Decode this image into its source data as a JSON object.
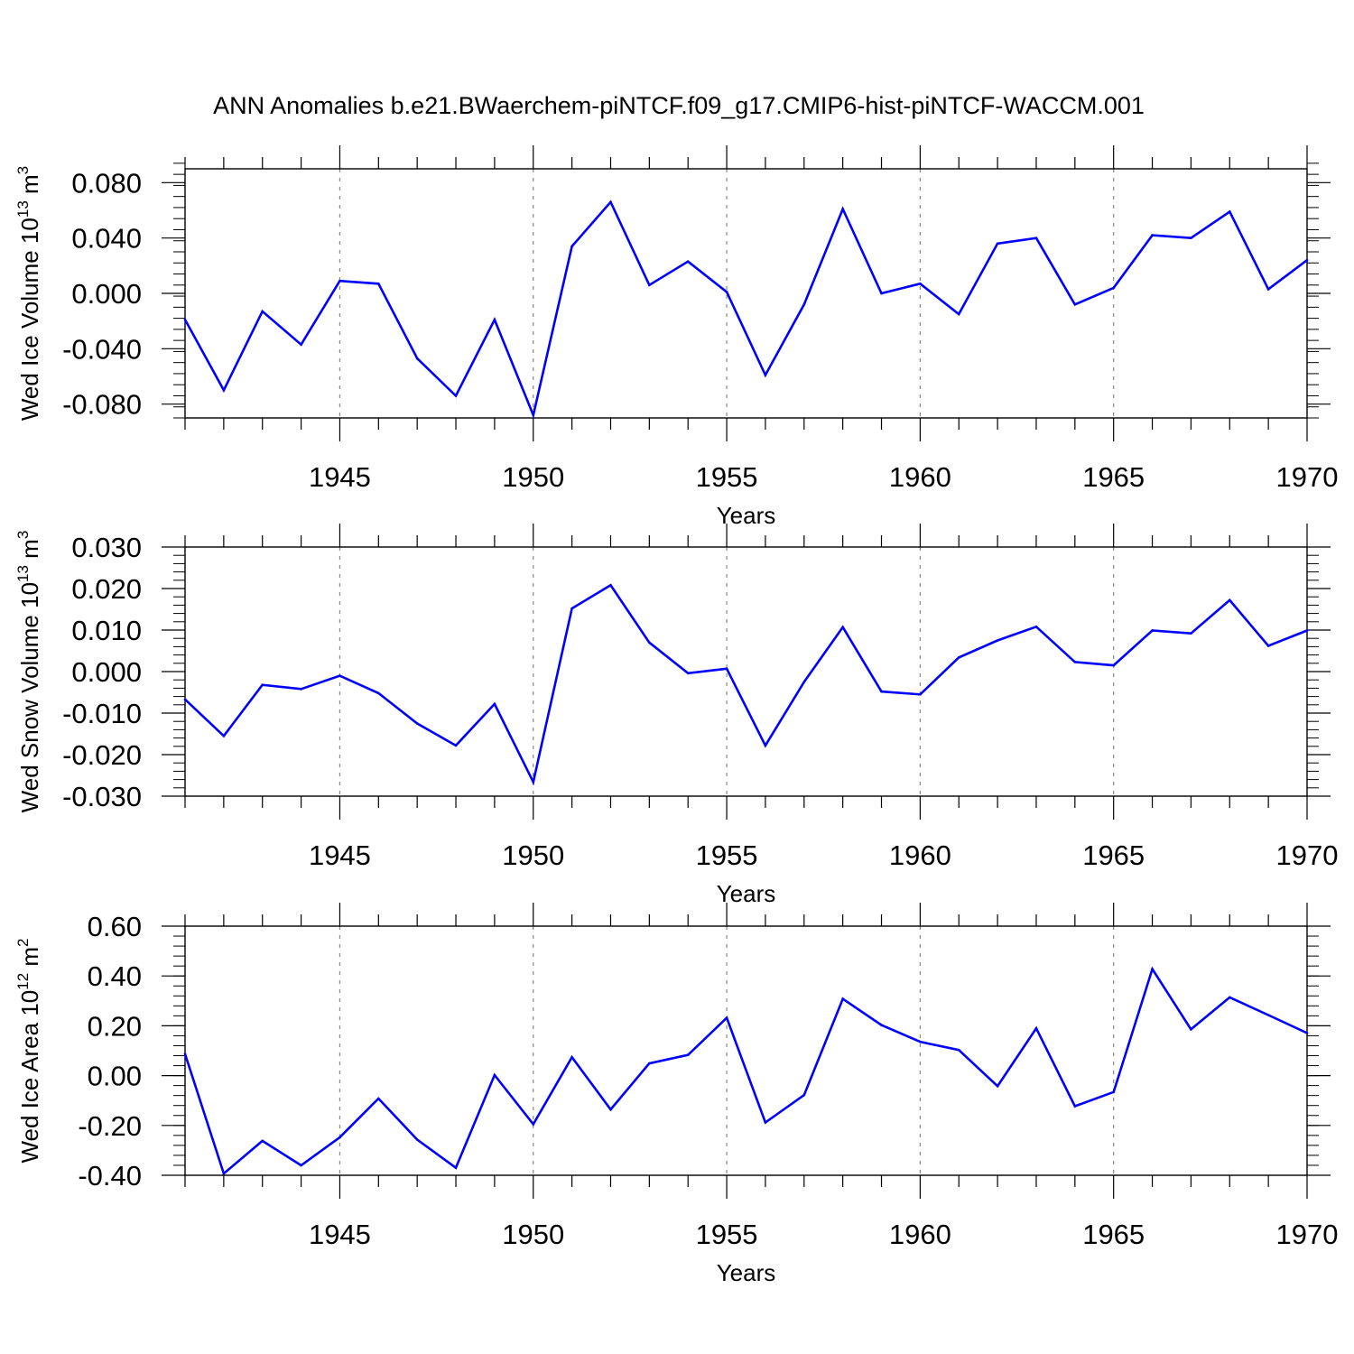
{
  "title": "ANN Anomalies b.e21.BWaerchem-piNTCF.f09_g17.CMIP6-hist-piNTCF-WACCM.001",
  "colors": {
    "line": "#0000ff",
    "axis": "#000000",
    "grid": "#888888"
  },
  "chart_data": [
    {
      "type": "line",
      "name": "ice-volume",
      "ylabel_main": "Wed Ice Volume 10",
      "ylabel_exp": "13",
      "ylabel_unit": " m",
      "ylabel_unit_exp": "3",
      "xlabel": "Years",
      "xlim": [
        1941,
        1970
      ],
      "ylim": [
        -0.09,
        0.09
      ],
      "yticks": [
        -0.08,
        -0.04,
        0.0,
        0.04,
        0.08
      ],
      "ytick_labels": [
        "-0.080",
        "-0.040",
        "0.000",
        "0.040",
        "0.080"
      ],
      "yminor_step": 0.008,
      "xticks": [
        1945,
        1950,
        1955,
        1960,
        1965,
        1970
      ],
      "xtick_labels": [
        "1945",
        "1950",
        "1955",
        "1960",
        "1965",
        "1970"
      ],
      "x": [
        1941,
        1942,
        1943,
        1944,
        1945,
        1946,
        1947,
        1948,
        1949,
        1950,
        1951,
        1952,
        1953,
        1954,
        1955,
        1956,
        1957,
        1958,
        1959,
        1960,
        1961,
        1962,
        1963,
        1964,
        1965,
        1966,
        1967,
        1968,
        1969,
        1970
      ],
      "values": [
        -0.019,
        -0.07,
        -0.013,
        -0.037,
        0.009,
        0.007,
        -0.047,
        -0.074,
        -0.019,
        -0.088,
        0.034,
        0.066,
        0.006,
        0.023,
        0.001,
        -0.059,
        -0.008,
        0.061,
        0.0,
        0.007,
        -0.015,
        0.036,
        0.04,
        -0.008,
        0.004,
        0.042,
        0.04,
        0.059,
        0.003,
        0.024
      ]
    },
    {
      "type": "line",
      "name": "snow-volume",
      "ylabel_main": "Wed Snow Volume 10",
      "ylabel_exp": "13",
      "ylabel_unit": " m",
      "ylabel_unit_exp": "3",
      "xlabel": "Years",
      "xlim": [
        1941,
        1970
      ],
      "ylim": [
        -0.03,
        0.03
      ],
      "yticks": [
        -0.03,
        -0.02,
        -0.01,
        0.0,
        0.01,
        0.02,
        0.03
      ],
      "ytick_labels": [
        "-0.030",
        "-0.020",
        "-0.010",
        "0.000",
        "0.010",
        "0.020",
        "0.030"
      ],
      "yminor_step": 0.002,
      "xticks": [
        1945,
        1950,
        1955,
        1960,
        1965,
        1970
      ],
      "xtick_labels": [
        "1945",
        "1950",
        "1955",
        "1960",
        "1965",
        "1970"
      ],
      "x": [
        1941,
        1942,
        1943,
        1944,
        1945,
        1946,
        1947,
        1948,
        1949,
        1950,
        1951,
        1952,
        1953,
        1954,
        1955,
        1956,
        1957,
        1958,
        1959,
        1960,
        1961,
        1962,
        1963,
        1964,
        1965,
        1966,
        1967,
        1968,
        1969,
        1970
      ],
      "values": [
        -0.0067,
        -0.0155,
        -0.0032,
        -0.0042,
        -0.001,
        -0.0052,
        -0.0125,
        -0.0178,
        -0.0078,
        -0.0266,
        0.0152,
        0.0208,
        0.007,
        -0.0004,
        0.0007,
        -0.0178,
        -0.0025,
        0.0107,
        -0.0048,
        -0.0055,
        0.0034,
        0.0075,
        0.0108,
        0.0023,
        0.0015,
        0.0099,
        0.0092,
        0.0172,
        0.0062,
        0.0099
      ]
    },
    {
      "type": "line",
      "name": "ice-area",
      "ylabel_main": "Wed Ice Area 10",
      "ylabel_exp": "12",
      "ylabel_unit": " m",
      "ylabel_unit_exp": "2",
      "xlabel": "Years",
      "xlim": [
        1941,
        1970
      ],
      "ylim": [
        -0.4,
        0.6
      ],
      "yticks": [
        -0.4,
        -0.2,
        0.0,
        0.2,
        0.4,
        0.6
      ],
      "ytick_labels": [
        "-0.40",
        "-0.20",
        "0.00",
        "0.20",
        "0.40",
        "0.60"
      ],
      "yminor_step": 0.04,
      "xticks": [
        1945,
        1950,
        1955,
        1960,
        1965,
        1970
      ],
      "xtick_labels": [
        "1945",
        "1950",
        "1955",
        "1960",
        "1965",
        "1970"
      ],
      "x": [
        1941,
        1942,
        1943,
        1944,
        1945,
        1946,
        1947,
        1948,
        1949,
        1950,
        1951,
        1952,
        1953,
        1954,
        1955,
        1956,
        1957,
        1958,
        1959,
        1960,
        1961,
        1962,
        1963,
        1964,
        1965,
        1966,
        1967,
        1968,
        1969,
        1970
      ],
      "values": [
        0.087,
        -0.393,
        -0.262,
        -0.36,
        -0.248,
        -0.092,
        -0.257,
        -0.37,
        0.002,
        -0.195,
        0.074,
        -0.136,
        0.049,
        0.083,
        0.232,
        -0.188,
        -0.078,
        0.308,
        0.203,
        0.136,
        0.103,
        -0.042,
        0.19,
        -0.123,
        -0.066,
        0.428,
        0.186,
        0.314,
        0.243,
        0.171
      ]
    }
  ]
}
